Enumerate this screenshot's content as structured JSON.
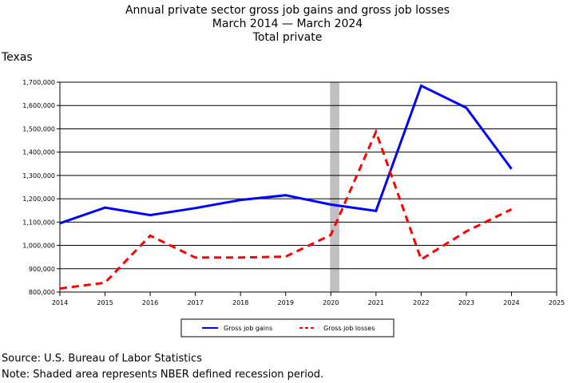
{
  "header": {
    "title_line1": "Annual private sector gross job gains and gross job losses",
    "title_line2": "March 2014 — March 2024",
    "title_line3": "Total private"
  },
  "region_label": "Texas",
  "footer": {
    "source": "Source: U.S. Bureau of Labor Statistics",
    "note": "Note: Shaded area represents NBER defined recession period."
  },
  "chart_data": {
    "type": "line",
    "title": "Annual private sector gross job gains and gross job losses",
    "subtitle": "March 2014 — March 2024 / Total private",
    "xlabel": "",
    "ylabel": "Texas",
    "xlim": [
      2014,
      2025
    ],
    "ylim": [
      800000,
      1700000
    ],
    "x_ticks": [
      2014,
      2015,
      2016,
      2017,
      2018,
      2019,
      2020,
      2021,
      2022,
      2023,
      2024,
      2025
    ],
    "y_ticks": [
      800000,
      900000,
      1000000,
      1100000,
      1200000,
      1300000,
      1400000,
      1500000,
      1600000,
      1700000
    ],
    "y_tick_labels": [
      "800,000",
      "900,000",
      "1,000,000",
      "1,100,000",
      "1,200,000",
      "1,300,000",
      "1,400,000",
      "1,500,000",
      "1,600,000",
      "1,700,000"
    ],
    "grid": "horizontal",
    "legend_position": "bottom",
    "recession": {
      "start": 2020.0,
      "end": 2020.17,
      "color": "#c0c0c0"
    },
    "series": [
      {
        "name": "Gross job gains",
        "color": "#0000ff",
        "style": "solid",
        "x": [
          2014,
          2015,
          2016,
          2017,
          2018,
          2019,
          2020,
          2021,
          2022,
          2023,
          2024
        ],
        "values": [
          1095000,
          1162000,
          1130000,
          1160000,
          1195000,
          1215000,
          1175000,
          1148000,
          1685000,
          1590000,
          1328000
        ]
      },
      {
        "name": "Gross job losses",
        "color": "#ff0000",
        "style": "dashed",
        "x": [
          2014,
          2015,
          2016,
          2017,
          2018,
          2019,
          2020,
          2021,
          2022,
          2023,
          2024
        ],
        "values": [
          815000,
          840000,
          1042000,
          948000,
          948000,
          952000,
          1045000,
          1487000,
          940000,
          1060000,
          1155000
        ]
      }
    ]
  }
}
